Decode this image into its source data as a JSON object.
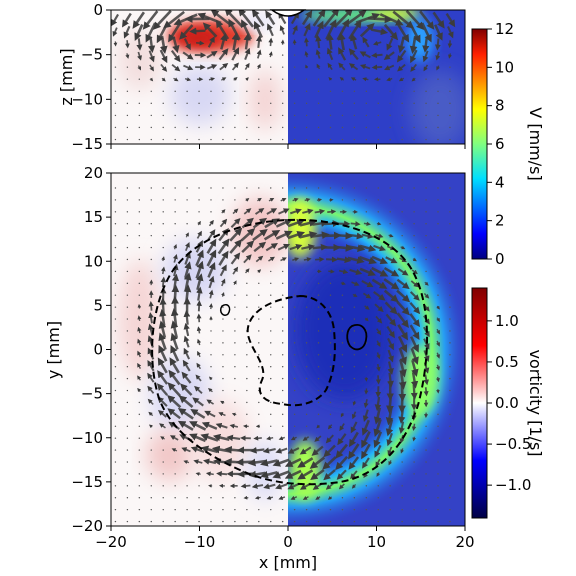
{
  "chart_data": [
    {
      "type": "heatmap",
      "panel": "side-view",
      "ylabel": "z [mm]",
      "xlim": [
        -20,
        20
      ],
      "ylim": [
        -15,
        0
      ],
      "xticks": [
        -20,
        -10,
        0,
        10,
        20
      ],
      "yticks": [
        0,
        -5,
        -10,
        -15
      ],
      "ytick_labels": [
        "0",
        "−5",
        "−10",
        "−15"
      ],
      "left_half_field": "vorticity [1/s]",
      "right_half_field": "V [mm/s]",
      "vortex_core": {
        "x": -10,
        "z": -3,
        "vorticity_peak": 1.2
      },
      "right_half_V_mean": 1.0,
      "right_half_V_peak": 6
    },
    {
      "type": "heatmap",
      "panel": "top-view",
      "xlabel": "x [mm]",
      "ylabel": "y [mm]",
      "xlim": [
        -20,
        20
      ],
      "ylim": [
        -20,
        20
      ],
      "xticks": [
        -20,
        -10,
        0,
        10,
        20
      ],
      "xtick_labels": [
        "−20",
        "−10",
        "0",
        "10",
        "20"
      ],
      "yticks": [
        20,
        15,
        10,
        5,
        0,
        -5,
        -10,
        -15,
        -20
      ],
      "ytick_labels": [
        "20",
        "15",
        "10",
        "5",
        "0",
        "−5",
        "−10",
        "−15",
        "−20"
      ],
      "left_half_field": "vorticity [1/s]",
      "right_half_field": "V [mm/s]",
      "velocity_ring_radius_mm": 14,
      "velocity_ring_peak": 6,
      "outer_contour_radius_mm": 15,
      "inner_contour_radius_mm": 6.5
    }
  ],
  "colorbars": [
    {
      "label": "V [mm/s]",
      "range": [
        0,
        12
      ],
      "ticks": [
        "0",
        "2",
        "4",
        "6",
        "8",
        "10",
        "12"
      ],
      "colormap": "jet"
    },
    {
      "label": "vorticity [1/s]",
      "range": [
        -1.4,
        1.4
      ],
      "ticks": [
        "1.0",
        "0.5",
        "0.0",
        "−0.5",
        "−1.0"
      ],
      "tick_values": [
        1.0,
        0.5,
        0.0,
        -0.5,
        -1.0
      ],
      "colormap": "seismic"
    }
  ]
}
